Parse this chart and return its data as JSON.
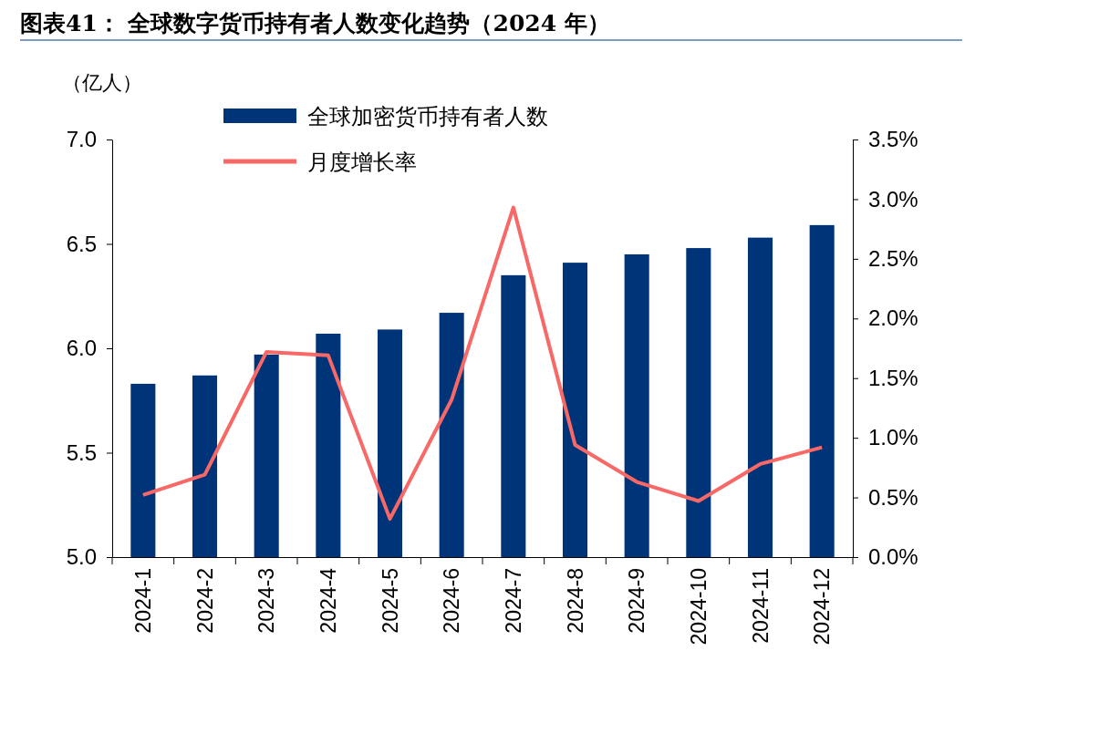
{
  "chart_data": {
    "type": "bar",
    "title": "图表41：  全球数字货币持有者人数变化趋势（2024 年）",
    "ylabel": "（亿人）",
    "categories": [
      "2024-1",
      "2024-2",
      "2024-3",
      "2024-4",
      "2024-5",
      "2024-6",
      "2024-7",
      "2024-8",
      "2024-9",
      "2024-10",
      "2024-11",
      "2024-12"
    ],
    "series": [
      {
        "name": "全球加密货币持有者人数",
        "color": "#003478",
        "values": [
          5.83,
          5.87,
          5.97,
          6.07,
          6.09,
          6.17,
          6.35,
          6.41,
          6.45,
          6.48,
          6.53,
          6.59
        ]
      },
      {
        "name": "月度增长率",
        "type": "line",
        "axis": "y2",
        "color": "#f86866",
        "values": [
          0.52,
          0.69,
          1.72,
          1.69,
          0.32,
          1.32,
          2.93,
          0.94,
          0.63,
          0.47,
          0.78,
          0.92
        ]
      }
    ],
    "ylim": [
      5.0,
      7.0
    ],
    "yticks": [
      {
        "value": 5.0,
        "label": "5.0"
      },
      5.5,
      {
        "value": 6.0,
        "label": "6.0"
      },
      6.5,
      {
        "value": 7.0,
        "label": "7.0"
      }
    ],
    "y2lim": [
      0,
      3.5
    ],
    "y2ticks": [
      {
        "value": 0,
        "label": "0.0%"
      },
      {
        "value": 0.5,
        "label": "0.5%"
      },
      {
        "value": 1,
        "label": "1.0%"
      },
      {
        "value": 1.5,
        "label": "1.5%"
      },
      {
        "value": 2,
        "label": "2.0%"
      },
      {
        "value": 2.5,
        "label": "2.5%"
      },
      {
        "value": 3,
        "label": "3.0%"
      },
      {
        "value": 3.5,
        "label": "3.5%"
      }
    ],
    "legend": "top left",
    "grid": false,
    "line_style": "solid",
    "marker": "none"
  }
}
